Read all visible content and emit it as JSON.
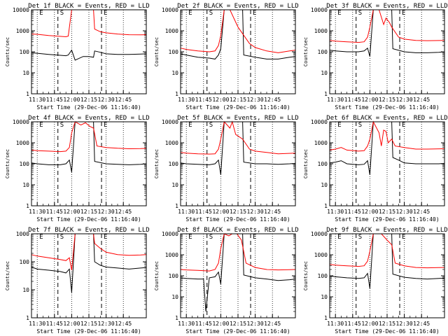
{
  "figure": {
    "ylabel": "Counts/sec",
    "xlabel": "Start Time (29-Dec-06 11:16:40)",
    "ticks_x": [
      "11:30",
      "11:45",
      "12:00",
      "12:15",
      "12:30",
      "12:45"
    ],
    "ticks_y": [
      "1",
      "10",
      "100",
      "1000",
      "10000"
    ],
    "markers": [
      {
        "label": "E",
        "time": "11:30"
      },
      {
        "label": "S",
        "time": "11:48"
      },
      {
        "label": "E",
        "time": "12:26"
      }
    ],
    "colors": {
      "events": "#000000",
      "lld": "#ff0000"
    }
  },
  "chart_data": [
    {
      "type": "line",
      "title": "Det 1f BLACK = Events, RED = LLD",
      "ylim": [
        1,
        10000
      ],
      "series": [
        {
          "name": "Events",
          "color": "#000000",
          "x_minutes": [
            -5,
            0,
            10,
            25,
            27,
            30,
            33,
            40,
            45,
            49,
            50,
            55,
            60,
            70,
            80,
            90,
            95
          ],
          "values": [
            90,
            85,
            75,
            65,
            70,
            120,
            40,
            60,
            60,
            55,
            110,
            95,
            80,
            75,
            75,
            78,
            80
          ]
        },
        {
          "name": "LLD",
          "color": "#ff0000",
          "x_minutes": [
            -5,
            0,
            10,
            25,
            27,
            30,
            33,
            40,
            45,
            49,
            50,
            55,
            60,
            70,
            80,
            90,
            95
          ],
          "values": [
            700,
            680,
            600,
            520,
            560,
            10000,
            10000,
            10000,
            10000,
            10000,
            1200,
            900,
            800,
            700,
            650,
            640,
            650
          ]
        }
      ]
    },
    {
      "type": "line",
      "title": "Det 2f BLACK = Events, RED = LLD",
      "ylim": [
        1,
        10000
      ],
      "series": [
        {
          "name": "Events",
          "color": "#000000",
          "x_minutes": [
            -5,
            0,
            10,
            20,
            25,
            28,
            30,
            33,
            45,
            49,
            50,
            60,
            70,
            80,
            90,
            95
          ],
          "values": [
            80,
            70,
            55,
            50,
            45,
            70,
            140,
            10000,
            10000,
            10000,
            70,
            55,
            45,
            45,
            55,
            60
          ]
        },
        {
          "name": "LLD",
          "color": "#ff0000",
          "x_minutes": [
            -5,
            0,
            10,
            20,
            25,
            28,
            30,
            33,
            38,
            45,
            55,
            60,
            70,
            80,
            90,
            95
          ],
          "values": [
            150,
            130,
            110,
            100,
            110,
            200,
            600,
            10000,
            10000,
            1500,
            250,
            160,
            110,
            90,
            110,
            120
          ]
        }
      ]
    },
    {
      "type": "line",
      "title": "Det 3f BLACK = Events, RED = LLD",
      "ylim": [
        1,
        10000
      ],
      "series": [
        {
          "name": "Events",
          "color": "#000000",
          "x_minutes": [
            -5,
            0,
            10,
            20,
            25,
            28,
            30,
            33,
            45,
            49,
            50,
            60,
            70,
            80,
            90,
            95
          ],
          "values": [
            120,
            110,
            100,
            100,
            110,
            150,
            60,
            10000,
            10000,
            10000,
            140,
            100,
            90,
            90,
            95,
            100
          ]
        },
        {
          "name": "LLD",
          "color": "#ff0000",
          "x_minutes": [
            -5,
            0,
            10,
            20,
            25,
            28,
            30,
            33,
            38,
            42,
            44,
            47,
            49,
            55,
            60,
            70,
            80,
            95
          ],
          "values": [
            350,
            320,
            300,
            280,
            300,
            500,
            1500,
            10000,
            10000,
            2000,
            4000,
            2500,
            1500,
            500,
            400,
            350,
            340,
            350
          ]
        }
      ]
    },
    {
      "type": "line",
      "title": "Det 4f BLACK = Events, RED = LLD",
      "ylim": [
        1,
        10000
      ],
      "series": [
        {
          "name": "Events",
          "color": "#000000",
          "x_minutes": [
            -5,
            0,
            10,
            20,
            25,
            28,
            30,
            33,
            45,
            49,
            50,
            60,
            70,
            80,
            90,
            95
          ],
          "values": [
            110,
            100,
            90,
            90,
            100,
            150,
            40,
            10000,
            10000,
            10000,
            130,
            100,
            95,
            90,
            95,
            100
          ]
        },
        {
          "name": "LLD",
          "color": "#ff0000",
          "x_minutes": [
            -5,
            0,
            10,
            20,
            25,
            28,
            30,
            33,
            38,
            42,
            46,
            49,
            52,
            60,
            70,
            80,
            90,
            95
          ],
          "values": [
            450,
            420,
            400,
            380,
            400,
            600,
            3000,
            10000,
            7000,
            9000,
            6000,
            5000,
            700,
            600,
            550,
            520,
            530,
            540
          ]
        }
      ]
    },
    {
      "type": "line",
      "title": "Det 5f BLACK = Events, RED = LLD",
      "ylim": [
        1,
        10000
      ],
      "series": [
        {
          "name": "Events",
          "color": "#000000",
          "x_minutes": [
            -5,
            0,
            10,
            20,
            25,
            28,
            30,
            33,
            45,
            49,
            50,
            60,
            70,
            80,
            90,
            95
          ],
          "values": [
            110,
            100,
            95,
            90,
            100,
            150,
            30,
            10000,
            10000,
            10000,
            120,
            100,
            100,
            95,
            100,
            105
          ]
        },
        {
          "name": "LLD",
          "color": "#ff0000",
          "x_minutes": [
            -5,
            0,
            10,
            20,
            25,
            28,
            30,
            33,
            38,
            40,
            43,
            49,
            55,
            60,
            70,
            80,
            95
          ],
          "values": [
            350,
            320,
            300,
            290,
            300,
            500,
            1500,
            10000,
            5000,
            10000,
            2500,
            1500,
            500,
            400,
            350,
            300,
            320
          ]
        }
      ]
    },
    {
      "type": "line",
      "title": "Det 6f BLACK = Events, RED = LLD",
      "ylim": [
        1,
        10000
      ],
      "series": [
        {
          "name": "Events",
          "color": "#000000",
          "x_minutes": [
            -5,
            0,
            5,
            10,
            20,
            25,
            28,
            30,
            33,
            45,
            49,
            50,
            55,
            60,
            70,
            80,
            90,
            95
          ],
          "values": [
            110,
            120,
            140,
            100,
            90,
            95,
            140,
            30,
            10000,
            10000,
            10000,
            200,
            150,
            110,
            100,
            100,
            100,
            105
          ]
        },
        {
          "name": "LLD",
          "color": "#ff0000",
          "x_minutes": [
            -5,
            0,
            5,
            10,
            20,
            25,
            28,
            30,
            33,
            38,
            40,
            42,
            44,
            46,
            49,
            52,
            60,
            70,
            80,
            95
          ],
          "values": [
            450,
            500,
            600,
            450,
            400,
            420,
            700,
            1500,
            10000,
            3000,
            700,
            4000,
            3500,
            1000,
            1500,
            700,
            600,
            500,
            500,
            520
          ]
        }
      ]
    },
    {
      "type": "line",
      "title": "Det 7f BLACK = Events, RED = LLD",
      "ylim": [
        1,
        1000
      ],
      "series": [
        {
          "name": "Events",
          "color": "#000000",
          "x_minutes": [
            -5,
            0,
            10,
            20,
            25,
            28,
            30,
            33,
            45,
            49,
            50,
            55,
            60,
            70,
            80,
            90,
            95
          ],
          "values": [
            65,
            55,
            50,
            45,
            40,
            55,
            8,
            1000,
            1000,
            1000,
            100,
            75,
            65,
            60,
            55,
            60,
            62
          ]
        },
        {
          "name": "LLD",
          "color": "#ff0000",
          "x_minutes": [
            -5,
            0,
            10,
            20,
            25,
            28,
            30,
            33,
            45,
            49,
            50,
            55,
            60,
            70,
            80,
            90,
            95
          ],
          "values": [
            180,
            160,
            140,
            120,
            110,
            140,
            50,
            1000,
            1000,
            1000,
            450,
            300,
            220,
            180,
            170,
            175,
            180
          ]
        }
      ]
    },
    {
      "type": "line",
      "title": "Det 8f BLACK = Events, RED = LLD",
      "ylim": [
        1,
        10000
      ],
      "series": [
        {
          "name": "Events",
          "color": "#000000",
          "x_minutes": [
            -5,
            0,
            10,
            15,
            17,
            20,
            25,
            28,
            30,
            33,
            45,
            49,
            50,
            60,
            70,
            80,
            90,
            95
          ],
          "values": [
            80,
            75,
            70,
            70,
            2,
            80,
            90,
            150,
            40,
            10000,
            10000,
            10000,
            110,
            80,
            70,
            60,
            65,
            70
          ]
        },
        {
          "name": "LLD",
          "color": "#ff0000",
          "x_minutes": [
            -5,
            0,
            10,
            20,
            25,
            28,
            30,
            33,
            37,
            40,
            44,
            48,
            52,
            60,
            70,
            80,
            90,
            95
          ],
          "values": [
            200,
            190,
            180,
            170,
            200,
            400,
            2000,
            10000,
            8000,
            10000,
            10000,
            5000,
            400,
            250,
            200,
            190,
            195,
            200
          ]
        }
      ]
    },
    {
      "type": "line",
      "title": "Det 9f BLACK = Events, RED = LLD",
      "ylim": [
        1,
        10000
      ],
      "series": [
        {
          "name": "Events",
          "color": "#000000",
          "x_minutes": [
            -5,
            0,
            10,
            20,
            25,
            28,
            30,
            33,
            45,
            49,
            50,
            60,
            70,
            80,
            90,
            95
          ],
          "values": [
            100,
            90,
            80,
            75,
            80,
            130,
            25,
            10000,
            10000,
            10000,
            120,
            85,
            75,
            70,
            75,
            78
          ]
        },
        {
          "name": "LLD",
          "color": "#ff0000",
          "x_minutes": [
            -5,
            0,
            10,
            20,
            25,
            28,
            30,
            33,
            40,
            45,
            49,
            52,
            60,
            70,
            80,
            90,
            95
          ],
          "values": [
            350,
            320,
            300,
            280,
            300,
            500,
            1500,
            10000,
            10000,
            5000,
            3000,
            400,
            300,
            250,
            240,
            245,
            250
          ]
        }
      ]
    }
  ]
}
